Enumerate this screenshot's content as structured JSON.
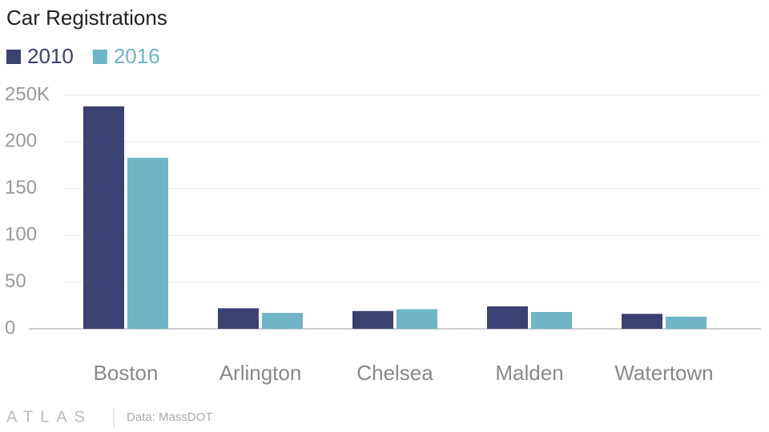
{
  "chart_data": {
    "type": "bar",
    "title": "Car Registrations",
    "categories": [
      "Boston",
      "Arlington",
      "Chelsea",
      "Malden",
      "Watertown"
    ],
    "series": [
      {
        "name": "2010",
        "color": "#3b4170",
        "values": [
          238,
          22,
          19,
          24,
          16
        ]
      },
      {
        "name": "2016",
        "color": "#6fb5c6",
        "values": [
          183,
          17,
          21,
          18,
          13
        ]
      }
    ],
    "ylim": [
      0,
      250
    ],
    "yticks": [
      0,
      50,
      100,
      150,
      200,
      {
        "value": 250,
        "label": "250K"
      }
    ],
    "grid": true,
    "legend": "top-left",
    "logo": "ATLAS",
    "source": "Data: MassDOT"
  }
}
